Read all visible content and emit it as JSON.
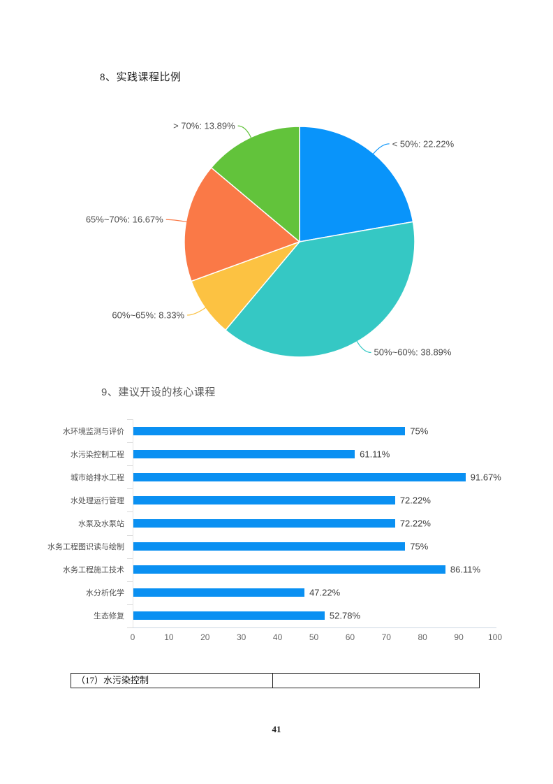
{
  "document": {
    "heading_8": "8、实践课程比例",
    "heading_9": "9、建议开设的核心课程",
    "page_number": "41"
  },
  "chart_data": [
    {
      "type": "pie",
      "title": "实践课程比例",
      "labels": [
        "< 50%",
        "50%~60%",
        "60%~65%",
        "65%~70%",
        "> 70%"
      ],
      "values": [
        22.22,
        38.89,
        8.33,
        16.67,
        13.89
      ],
      "label_texts": [
        "< 50%: 22.22%",
        "50%~60%: 38.89%",
        "60%~65%: 8.33%",
        "65%~70%: 16.67%",
        "> 70%: 13.89%"
      ],
      "colors": [
        "#0994fa",
        "#35c8c4",
        "#fcc242",
        "#fa7947",
        "#62c33b"
      ],
      "unit": "%",
      "start_angle": "top",
      "direction": "clockwise",
      "legend": "none"
    },
    {
      "type": "bar",
      "orientation": "horizontal",
      "title": "建议开设的核心课程",
      "categories": [
        "水环境监测与评价",
        "水污染控制工程",
        "城市给排水工程",
        "水处理运行管理",
        "水泵及水泵站",
        "水务工程图识读与绘制",
        "水务工程施工技术",
        "水分析化学",
        "生态修复"
      ],
      "values": [
        75,
        61.11,
        91.67,
        72.22,
        72.22,
        75,
        86.11,
        47.22,
        52.78
      ],
      "value_labels": [
        "75%",
        "61.11%",
        "91.67%",
        "72.22%",
        "72.22%",
        "75%",
        "86.11%",
        "47.22%",
        "52.78%"
      ],
      "x_ticks": [
        0,
        10,
        20,
        30,
        40,
        50,
        60,
        70,
        80,
        90,
        100
      ],
      "xlim": [
        0,
        100
      ],
      "bar_color": "#0a90f2",
      "grid": "off",
      "unit": "%"
    }
  ],
  "table": {
    "rows": [
      [
        "（17）水污染控制",
        ""
      ]
    ]
  }
}
